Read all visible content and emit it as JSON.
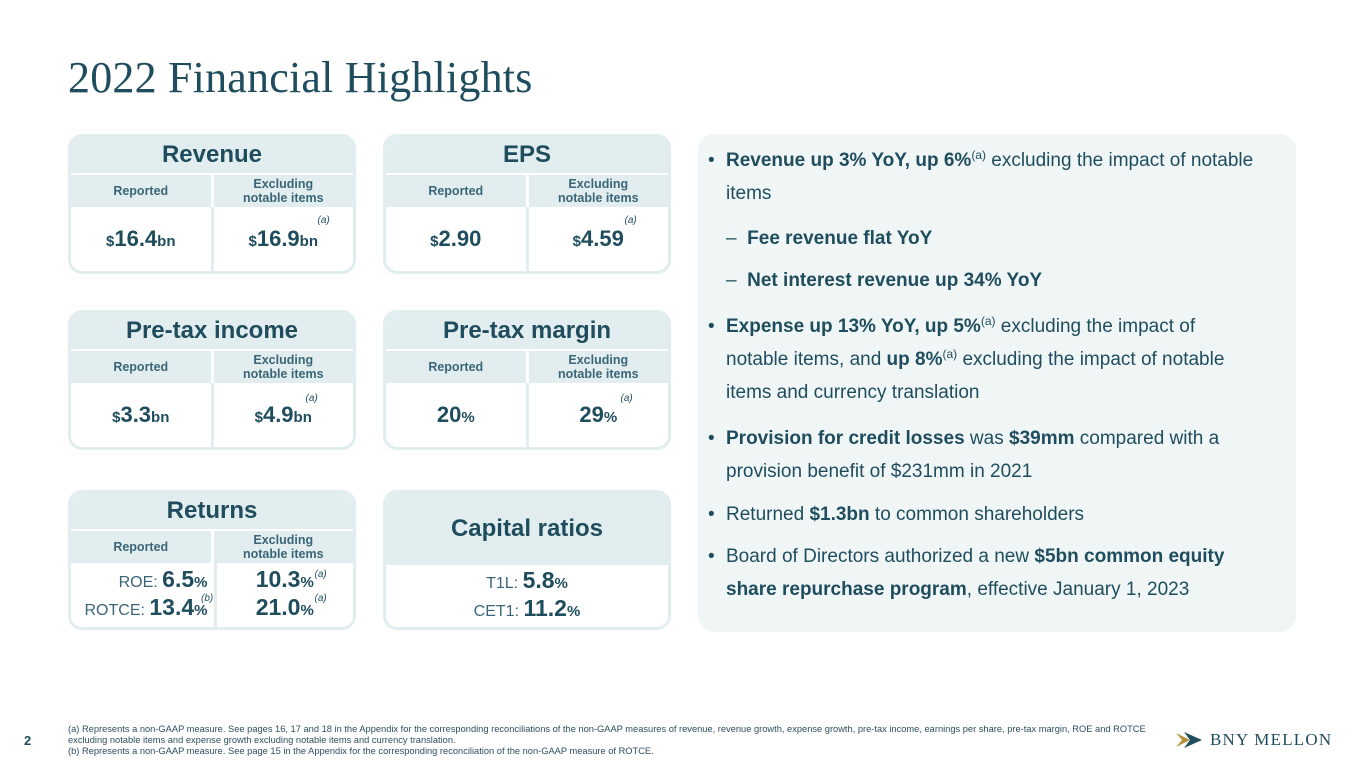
{
  "title": "2022 Financial Highlights",
  "labels": {
    "reported": "Reported",
    "excl1": "Excluding",
    "excl2": "notable items",
    "fn_a": "(a)",
    "fn_b": "(b)"
  },
  "revenue": {
    "title": "Revenue",
    "reported_prefix": "$",
    "reported_value": "16.4",
    "reported_unit": "bn",
    "excl_prefix": "$",
    "excl_value": "16.9",
    "excl_unit": "bn"
  },
  "eps": {
    "title": "EPS",
    "reported_prefix": "$",
    "reported_value": "2.90",
    "excl_prefix": "$",
    "excl_value": "4.59"
  },
  "pretax_income": {
    "title": "Pre-tax income",
    "reported_prefix": "$",
    "reported_value": "3.3",
    "reported_unit": "bn",
    "excl_prefix": "$",
    "excl_value": "4.9",
    "excl_unit": "bn"
  },
  "pretax_margin": {
    "title": "Pre-tax margin",
    "reported_value": "20",
    "excl_value": "29",
    "unit": "%"
  },
  "returns": {
    "title": "Returns",
    "roe_label": "ROE:",
    "roe_value": "6.5",
    "rotce_label": "ROTCE:",
    "rotce_value": "13.4",
    "roe_excl": "10.3",
    "rotce_excl": "21.0",
    "unit": "%"
  },
  "capital": {
    "title": "Capital ratios",
    "t1l_label": "T1L:",
    "t1l_value": "5.8",
    "cet1_label": "CET1:",
    "cet1_value": "11.2",
    "unit": "%"
  },
  "bullets": {
    "b1_bold": "Revenue up 3% YoY, up 6%",
    "b1_sup": "(a)",
    "b1_rest": " excluding the impact of notable",
    "b1_line2": "items",
    "dash": "–",
    "sub1": "Fee revenue flat YoY",
    "sub2": "Net interest revenue up 34% YoY",
    "b2_bold": "Expense up 13% YoY, up 5%",
    "b2_sup": "(a)",
    "b2_rest": " excluding the impact of",
    "b2_line2a": "notable items, and ",
    "b2_line2b": "up 8%",
    "b2_sup2": "(a)",
    "b2_line2c": " excluding the impact of notable",
    "b2_line3": "items and currency translation",
    "b3_bold": "Provision for credit losses",
    "b3_mid": " was ",
    "b3_bold2": "$39mm",
    "b3_rest": " compared with a",
    "b3_line2": "provision benefit of $231mm in 2021",
    "b4_a": "Returned ",
    "b4_bold": "$1.3bn",
    "b4_c": " to common shareholders",
    "b5_a": "Board of Directors authorized a new ",
    "b5_bold": "$5bn common equity",
    "b5_bold2": "share repurchase program",
    "b5_rest": ", effective January 1, 2023"
  },
  "footnotes": {
    "a": "(a) Represents a non-GAAP measure. See pages 16, 17 and 18 in the Appendix for the corresponding reconciliations of the non-GAAP measures of revenue, revenue growth, expense growth, pre-tax income, earnings per share, pre-tax margin, ROE and ROTCE excluding notable items and expense growth excluding notable items and currency translation.",
    "b": "(b) Represents a non-GAAP measure. See page 15 in the Appendix for the corresponding reconciliation of the non-GAAP measure of ROTCE."
  },
  "page_number": "2",
  "logo": {
    "text": "BNY MELLON"
  }
}
